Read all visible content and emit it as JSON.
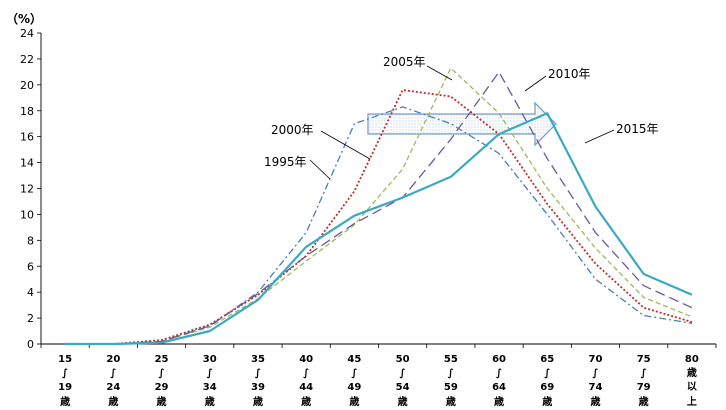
{
  "chart_data": {
    "type": "line",
    "unit_label": "（%）",
    "ylim": [
      0,
      24
    ],
    "y_ticks": [
      "0",
      "2",
      "4",
      "6",
      "8",
      "10",
      "12",
      "14",
      "16",
      "18",
      "20",
      "22",
      "24"
    ],
    "categories": [
      [
        "15",
        "∫",
        "19",
        "歳"
      ],
      [
        "20",
        "∫",
        "24",
        "歳"
      ],
      [
        "25",
        "∫",
        "29",
        "歳"
      ],
      [
        "30",
        "∫",
        "34",
        "歳"
      ],
      [
        "35",
        "∫",
        "39",
        "歳"
      ],
      [
        "40",
        "∫",
        "44",
        "歳"
      ],
      [
        "45",
        "∫",
        "49",
        "歳"
      ],
      [
        "50",
        "∫",
        "54",
        "歳"
      ],
      [
        "55",
        "∫",
        "59",
        "歳"
      ],
      [
        "60",
        "∫",
        "64",
        "歳"
      ],
      [
        "65",
        "∫",
        "69",
        "歳"
      ],
      [
        "70",
        "∫",
        "74",
        "歳"
      ],
      [
        "75",
        "∫",
        "79",
        "歳"
      ],
      [
        "80",
        "歳",
        "以",
        "上"
      ]
    ],
    "series": [
      {
        "name": "1995年",
        "color": "#4a7ebb",
        "dash": "7,3,2,3",
        "width": 1.3,
        "values": [
          0,
          0,
          0.2,
          1.4,
          4.0,
          8.6,
          17.0,
          18.3,
          17.0,
          14.7,
          10.0,
          5.0,
          2.2,
          1.6
        ]
      },
      {
        "name": "2000年",
        "color": "#c0302b",
        "dash": "2,2",
        "width": 1.8,
        "values": [
          0,
          0,
          0.3,
          1.5,
          3.8,
          6.8,
          11.8,
          19.6,
          19.1,
          16.2,
          10.8,
          6.2,
          2.8,
          1.7
        ]
      },
      {
        "name": "2005年",
        "color": "#9bbb59",
        "dash": "5,3",
        "width": 1.3,
        "values": [
          0,
          0,
          0.2,
          1.3,
          3.5,
          6.4,
          9.2,
          13.5,
          21.3,
          17.8,
          12.0,
          7.4,
          3.6,
          2.1
        ]
      },
      {
        "name": "2010年",
        "color": "#6a5a9a",
        "dash": "10,5",
        "width": 1.3,
        "values": [
          0,
          0,
          0.2,
          1.4,
          3.9,
          6.8,
          9.3,
          11.3,
          15.8,
          21.0,
          14.3,
          8.6,
          4.5,
          2.8
        ]
      },
      {
        "name": "2015年",
        "color": "#3aa9c2",
        "dash": "",
        "width": 2.2,
        "values": [
          0,
          0,
          0.1,
          1.0,
          3.4,
          7.5,
          9.9,
          11.3,
          12.9,
          16.2,
          17.8,
          10.6,
          5.4,
          3.8
        ]
      }
    ],
    "annotations": [
      "1995年",
      "2000年",
      "2005年",
      "2010年",
      "2015年"
    ]
  }
}
